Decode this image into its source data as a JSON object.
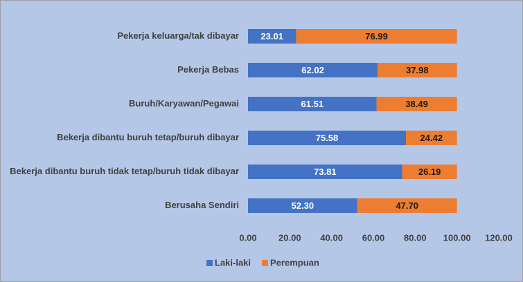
{
  "chart_data": {
    "type": "stacked-bar-horizontal",
    "categories": [
      "Pekerja keluarga/tak dibayar",
      "Pekerja Bebas",
      "Buruh/Karyawan/Pegawai",
      "Bekerja dibantu buruh tetap/buruh dibayar",
      "Bekerja dibantu buruh tidak tetap/buruh tidak dibayar",
      "Berusaha Sendiri"
    ],
    "series": [
      {
        "name": "Laki-laki",
        "color": "#4472c4",
        "values": [
          23.01,
          62.02,
          61.51,
          75.58,
          73.81,
          52.3
        ],
        "value_labels": [
          "23.01",
          "62.02",
          "61.51",
          "75.58",
          "73.81",
          "52.30"
        ]
      },
      {
        "name": "Perempuan",
        "color": "#ed7d31",
        "values": [
          76.99,
          37.98,
          38.49,
          24.42,
          26.19,
          47.7
        ],
        "value_labels": [
          "76.99",
          "37.98",
          "38.49",
          "24.42",
          "26.19",
          "47.70"
        ]
      }
    ],
    "xlim": [
      0,
      120
    ],
    "xticks": [
      {
        "value": 0,
        "label": "0.00"
      },
      {
        "value": 20,
        "label": "20.00"
      },
      {
        "value": 40,
        "label": "40.00"
      },
      {
        "value": 60,
        "label": "60.00"
      },
      {
        "value": 80,
        "label": "80.00"
      },
      {
        "value": 100,
        "label": "100.00"
      },
      {
        "value": 120,
        "label": "120.00"
      }
    ],
    "grid": false,
    "legend": "bottom"
  }
}
